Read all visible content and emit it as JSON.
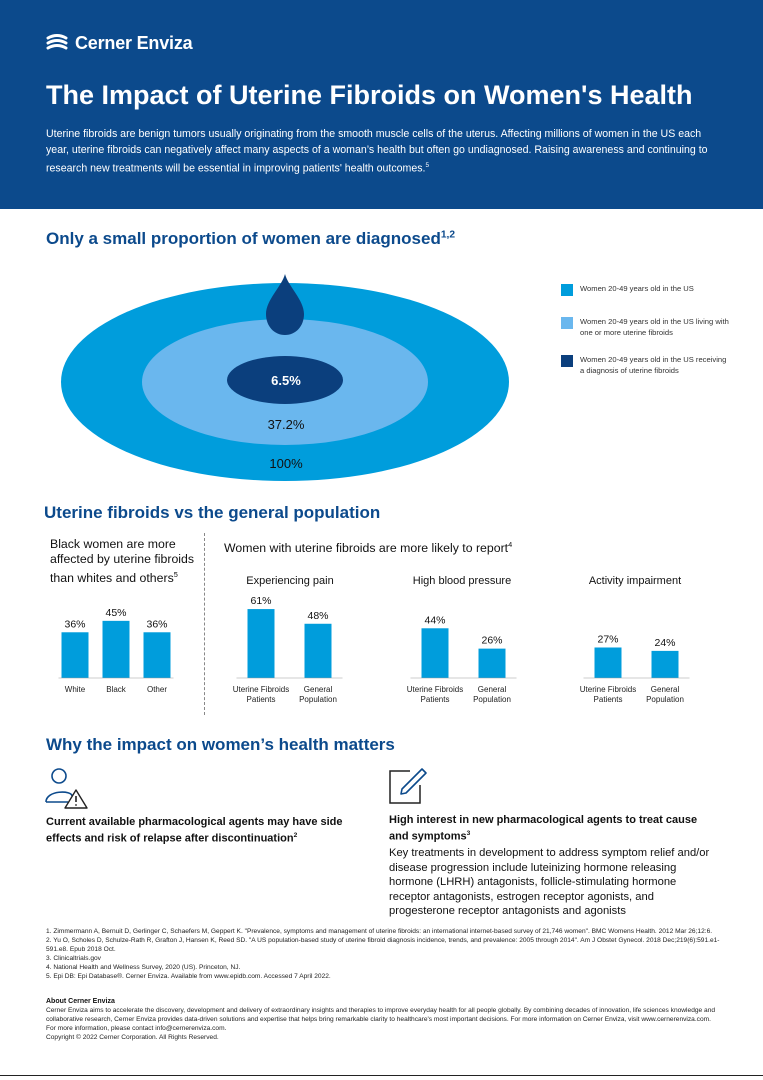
{
  "header": {
    "logo_text": "Cerner Enviza",
    "title": "The Impact of Uterine Fibroids on Women's Health",
    "intro": "Uterine fibroids are benign tumors usually originating from the smooth muscle cells of the uterus. Affecting millions of women in the US each year, uterine fibroids can negatively affect many aspects of a woman’s health but often go undiagnosed. Raising awareness and continuing to research new treatments will be essential in improving patients' health outcomes.",
    "intro_sup": "5"
  },
  "colors": {
    "navy": "#0c4a8c",
    "blue": "#009ddc",
    "light_blue": "#6ab7ee",
    "dark_navy": "#0b3f7d"
  },
  "section1": {
    "title": "Only a small proportion of women are diagnosed",
    "sup": "1,2"
  },
  "section2": {
    "title": "Uterine fibroids vs the general population"
  },
  "section3": {
    "title": "Why the impact on women’s health matters"
  },
  "chart_data": [
    {
      "type": "nested-area",
      "values": [
        100,
        37.2,
        6.5
      ],
      "labels": [
        "100%",
        "37.2%",
        "6.5%"
      ],
      "legend": [
        {
          "label": "Women 20-49 years old in the US",
          "color": "#009ddc"
        },
        {
          "label": "Women 20-49 years old in the US living with one or more uterine fibroids",
          "color": "#6ab7ee"
        },
        {
          "label": "Women 20-49 years old in the US receiving a diagnosis of uterine fibroids",
          "color": "#0b3f7d"
        }
      ]
    },
    {
      "type": "bar",
      "title": "Black women are more affected by uterine fibroids than whites and others",
      "title_sup": "5",
      "categories": [
        "White",
        "Black",
        "Other"
      ],
      "values": [
        36,
        45,
        36
      ],
      "labels": [
        "36%",
        "45%",
        "36%"
      ]
    },
    {
      "type": "bar",
      "title": "Women with uterine fibroids are more likely to report",
      "title_sup": "4",
      "panels": [
        {
          "title": "Experiencing pain",
          "categories": [
            "Uterine Fibroids Patients",
            "General Population"
          ],
          "values": [
            61,
            48
          ],
          "labels": [
            "61%",
            "48%"
          ]
        },
        {
          "title": "High blood pressure",
          "categories": [
            "Uterine Fibroids Patients",
            "General Population"
          ],
          "values": [
            44,
            26
          ],
          "labels": [
            "44%",
            "26%"
          ]
        },
        {
          "title": "Activity impairment",
          "categories": [
            "Uterine Fibroids Patients",
            "General Population"
          ],
          "values": [
            27,
            24
          ],
          "labels": [
            "27%",
            "24%"
          ]
        }
      ]
    }
  ],
  "why": {
    "left": {
      "icon": "user-warning-icon",
      "title": "Current available pharmacological agents may have side effects and risk of relapse after discontinuation",
      "sup": "2"
    },
    "right": {
      "icon": "edit-document-icon",
      "title": "High interest in new pharmacological agents to treat cause and symptoms",
      "sup": "3",
      "text": "Key treatments in development to address symptom relief and/or disease progression include luteinizing hormone releasing hormone (LHRH) antagonists, follicle-stimulating hormone receptor antagonists, estrogen receptor agonists, and progesterone receptor antagonists and agonists"
    }
  },
  "references": [
    "1. Zimmermann A, Bernuit D, Gerlinger C, Schaefers M, Geppert K. \"Prevalence, symptoms and management of uterine fibroids: an international internet-based survey of 21,746 women\". BMC Womens Health. 2012 Mar 26;12:6.",
    "2. Yu O, Scholes D, Schulze-Rath R, Grafton J, Hansen K, Reed SD. \"A US population-based study of uterine fibroid diagnosis incidence, trends, and prevalence: 2005 through 2014\". Am J Obstet Gynecol. 2018 Dec;219(6):591.e1-591.e8. Epub 2018 Oct.",
    "3. Clinicaltrials.gov",
    "4. National Health and Wellness Survey, 2020 (US). Princeton, NJ.",
    "5. Epi DB: Epi Database®. Cerner Enviza. Available from www.epidb.com. Accessed 7 April 2022."
  ],
  "about": {
    "title": "About Cerner Enviza",
    "text": "Cerner Enviza aims to accelerate the discovery, development and delivery of extraordinary insights and therapies to improve everyday health for all people globally. By combining decades of innovation, life sciences knowledge and collaborative research, Cerner Enviza provides data-driven solutions and expertise that helps bring remarkable clarity to healthcare's most important decisions. For more information on Cerner Enviza, visit www.cernerenviza.com.",
    "contact": "For more information, please contact info@cernerenviza.com.",
    "copyright": "Copyright © 2022 Cerner Corporation. All Rights Reserved."
  }
}
